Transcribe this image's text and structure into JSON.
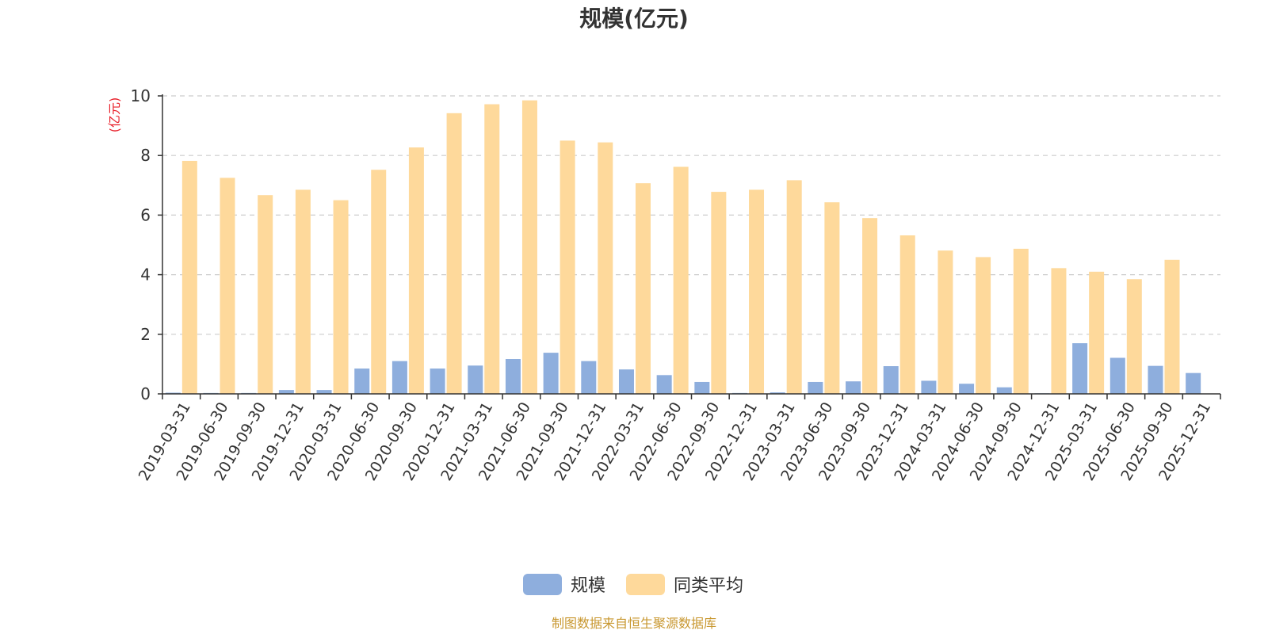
{
  "chart_data": {
    "type": "bar",
    "title": "规模(亿元)",
    "ylabel": "(亿元)",
    "ylim": [
      0,
      10
    ],
    "yticks": [
      "0",
      "2",
      "4",
      "6",
      "8",
      "10"
    ],
    "grid": true,
    "legend_position": "bottom",
    "categories": [
      "2019-03-31",
      "2019-06-30",
      "2019-09-30",
      "2019-12-31",
      "2020-03-31",
      "2020-06-30",
      "2020-09-30",
      "2020-12-31",
      "2021-03-31",
      "2021-06-30",
      "2021-09-30",
      "2021-12-31",
      "2022-03-31",
      "2022-06-30",
      "2022-09-30",
      "2022-12-31",
      "2023-03-31",
      "2023-06-30",
      "2023-09-30",
      "2023-12-31",
      "2024-03-31",
      "2024-06-30",
      "2024-09-30",
      "2024-12-31",
      "2025-03-31",
      "2025-06-30",
      "2025-09-30",
      "2025-12-31"
    ],
    "series": [
      {
        "name": "规模",
        "color": "#8eaedd",
        "values": [
          0.04,
          0.03,
          0.03,
          0.13,
          0.13,
          0.85,
          1.1,
          0.85,
          0.95,
          1.17,
          1.38,
          1.1,
          0.82,
          0.63,
          0.4,
          0.03,
          0.05,
          0.4,
          0.42,
          0.93,
          0.44,
          0.34,
          0.22,
          0.02,
          1.7,
          1.21,
          0.94,
          0.7
        ]
      },
      {
        "name": "同类平均",
        "color": "#fed99b",
        "values": [
          7.82,
          7.25,
          6.67,
          6.85,
          6.5,
          7.52,
          8.27,
          9.42,
          9.72,
          9.85,
          8.5,
          8.44,
          7.07,
          7.62,
          6.78,
          6.85,
          7.17,
          6.43,
          5.9,
          5.32,
          4.81,
          4.59,
          4.87,
          4.22,
          4.1,
          3.85,
          4.5,
          null
        ]
      }
    ]
  },
  "footer": {
    "source": "制图数据来自恒生聚源数据库"
  }
}
